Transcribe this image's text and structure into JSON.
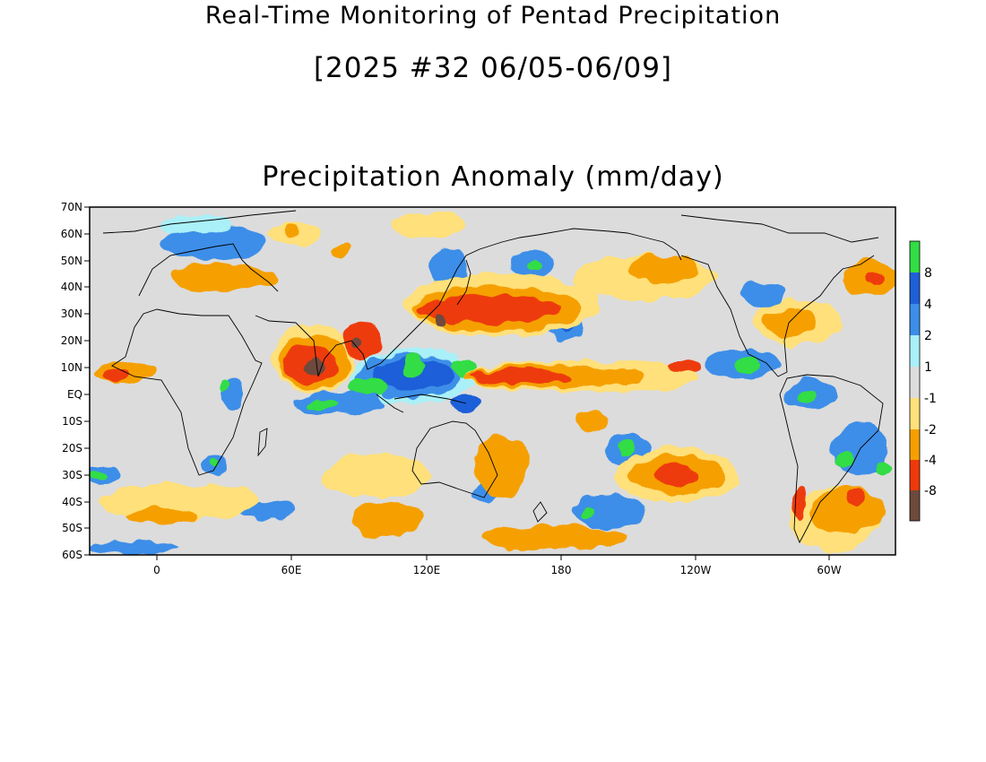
{
  "header": {
    "title": "Real-Time Monitoring of Pentad Precipitation",
    "period": "[2025 #32 06/05-06/09]",
    "map_title": "Precipitation Anomaly (mm/day)"
  },
  "map": {
    "lat_labels": [
      "70N",
      "60N",
      "50N",
      "40N",
      "30N",
      "20N",
      "10N",
      "EQ",
      "10S",
      "20S",
      "30S",
      "40S",
      "50S",
      "60S"
    ],
    "lon_labels": [
      "0",
      "60E",
      "120E",
      "180",
      "120W",
      "60W"
    ],
    "lat_range": [
      -60,
      70
    ],
    "lon_range": [
      -35,
      330
    ]
  },
  "colorbar": {
    "labels": [
      "8",
      "4",
      "2",
      "1",
      "-1",
      "-2",
      "-4",
      "-8"
    ],
    "colors": [
      "#33dd44",
      "#1e5fd8",
      "#3c8ee8",
      "#aaf0f8",
      "#dcdcdc",
      "#ffe07a",
      "#f5a000",
      "#ee3a0a",
      "#6e4a3c"
    ]
  }
}
